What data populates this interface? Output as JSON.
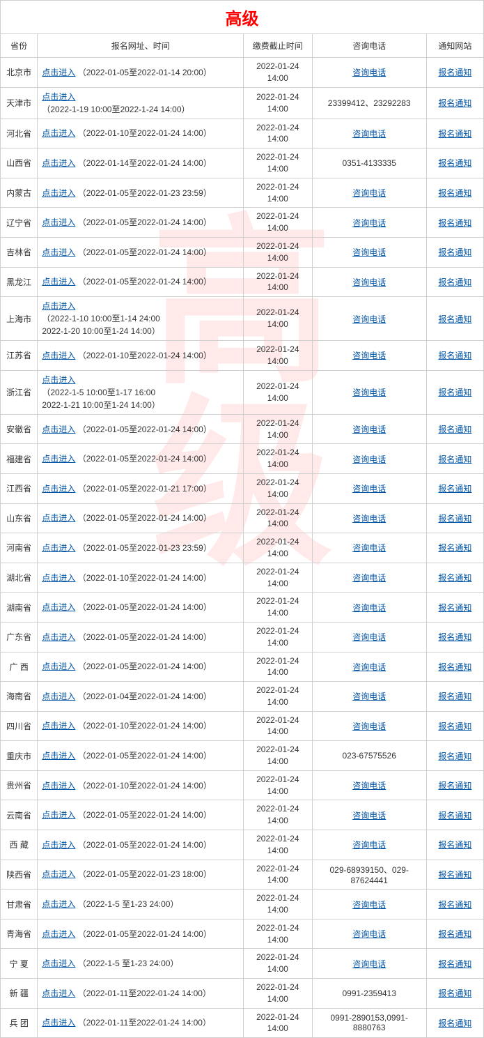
{
  "title": "高级",
  "watermark": "高级",
  "headers": {
    "province": "省份",
    "registration": "报名网址、时间",
    "deadline": "缴费截止时间",
    "phone": "咨询电话",
    "notice": "通知网站"
  },
  "link_enter": "点击进入",
  "link_phone": "咨询电话",
  "link_notice": "报名通知",
  "deadline_common": "2022-01-24 14:00",
  "rows": [
    {
      "province": "北京市",
      "date_range": "（2022-01-05至2022-01-14 20:00）",
      "phone_link": true
    },
    {
      "province": "天津市",
      "date_range": "（2022-1-19 10:00至2022-1-24 14:00）",
      "multi": true,
      "phone_text": "23399412、23292283"
    },
    {
      "province": "河北省",
      "date_range": "（2022-01-10至2022-01-24 14:00）",
      "phone_link": true
    },
    {
      "province": "山西省",
      "date_range": "（2022-01-14至2022-01-24 14:00）",
      "phone_text": "0351-4133335"
    },
    {
      "province": "内蒙古",
      "date_range": "（2022-01-05至2022-01-23 23:59）",
      "phone_link": true
    },
    {
      "province": "辽宁省",
      "date_range": "（2022-01-05至2022-01-24 14:00）",
      "phone_link": true
    },
    {
      "province": "吉林省",
      "date_range": "（2022-01-05至2022-01-24 14:00）",
      "phone_link": true
    },
    {
      "province": "黑龙江",
      "date_range": "（2022-01-05至2022-01-24 14:00）",
      "phone_link": true
    },
    {
      "province": "上海市",
      "date_range": "（2022-1-10 10:00至1-14 24:00\n2022-1-20 10:00至1-24 14:00）",
      "multi": true,
      "phone_link": true
    },
    {
      "province": "江苏省",
      "date_range": "（2022-01-10至2022-01-24 14:00）",
      "phone_link": true
    },
    {
      "province": "浙江省",
      "date_range": "（2022-1-5 10:00至1-17 16:00\n2022-1-21 10:00至1-24 14:00）",
      "multi": true,
      "phone_link": true
    },
    {
      "province": "安徽省",
      "date_range": "（2022-01-05至2022-01-24 14:00）",
      "phone_link": true
    },
    {
      "province": "福建省",
      "date_range": "（2022-01-05至2022-01-24 14:00）",
      "phone_link": true
    },
    {
      "province": "江西省",
      "date_range": "（2022-01-05至2022-01-21 17:00）",
      "phone_link": true
    },
    {
      "province": "山东省",
      "date_range": "（2022-01-05至2022-01-24 14:00）",
      "phone_link": true
    },
    {
      "province": "河南省",
      "date_range": "（2022-01-05至2022-01-23 23:59）",
      "phone_link": true
    },
    {
      "province": "湖北省",
      "date_range": "（2022-01-10至2022-01-24 14:00）",
      "phone_link": true
    },
    {
      "province": "湖南省",
      "date_range": "（2022-01-05至2022-01-24 14:00）",
      "phone_link": true
    },
    {
      "province": "广东省",
      "date_range": "（2022-01-05至2022-01-24 14:00）",
      "phone_link": true
    },
    {
      "province": "广 西",
      "date_range": "（2022-01-05至2022-01-24 14:00）",
      "phone_link": true
    },
    {
      "province": "海南省",
      "date_range": "（2022-01-04至2022-01-24 14:00）",
      "phone_link": true
    },
    {
      "province": "四川省",
      "date_range": "（2022-01-10至2022-01-24 14:00）",
      "phone_link": true
    },
    {
      "province": "重庆市",
      "date_range": "（2022-01-05至2022-01-24 14:00）",
      "phone_text": "023-67575526"
    },
    {
      "province": "贵州省",
      "date_range": "（2022-01-10至2022-01-24 14:00）",
      "phone_link": true
    },
    {
      "province": "云南省",
      "date_range": "（2022-01-05至2022-01-24 14:00）",
      "phone_link": true
    },
    {
      "province": "西 藏",
      "date_range": "（2022-01-05至2022-01-24 14:00）",
      "phone_link": true
    },
    {
      "province": "陕西省",
      "date_range": "（2022-01-05至2022-01-23 18:00）",
      "phone_text": "029-68939150、029-87624441"
    },
    {
      "province": "甘肃省",
      "date_range": "（2022-1-5 至1-23 24:00）",
      "phone_link": true
    },
    {
      "province": "青海省",
      "date_range": "（2022-01-05至2022-01-24 14:00）",
      "phone_link": true
    },
    {
      "province": "宁 夏",
      "date_range": "（2022-1-5 至1-23 24:00）",
      "phone_link": true
    },
    {
      "province": "新 疆",
      "date_range": "（2022-01-11至2022-01-24 14:00）",
      "phone_text": "0991-2359413"
    },
    {
      "province": "兵 团",
      "date_range": "（2022-01-11至2022-01-24 14:00）",
      "phone_text": "0991-2890153,0991-8880763"
    }
  ]
}
